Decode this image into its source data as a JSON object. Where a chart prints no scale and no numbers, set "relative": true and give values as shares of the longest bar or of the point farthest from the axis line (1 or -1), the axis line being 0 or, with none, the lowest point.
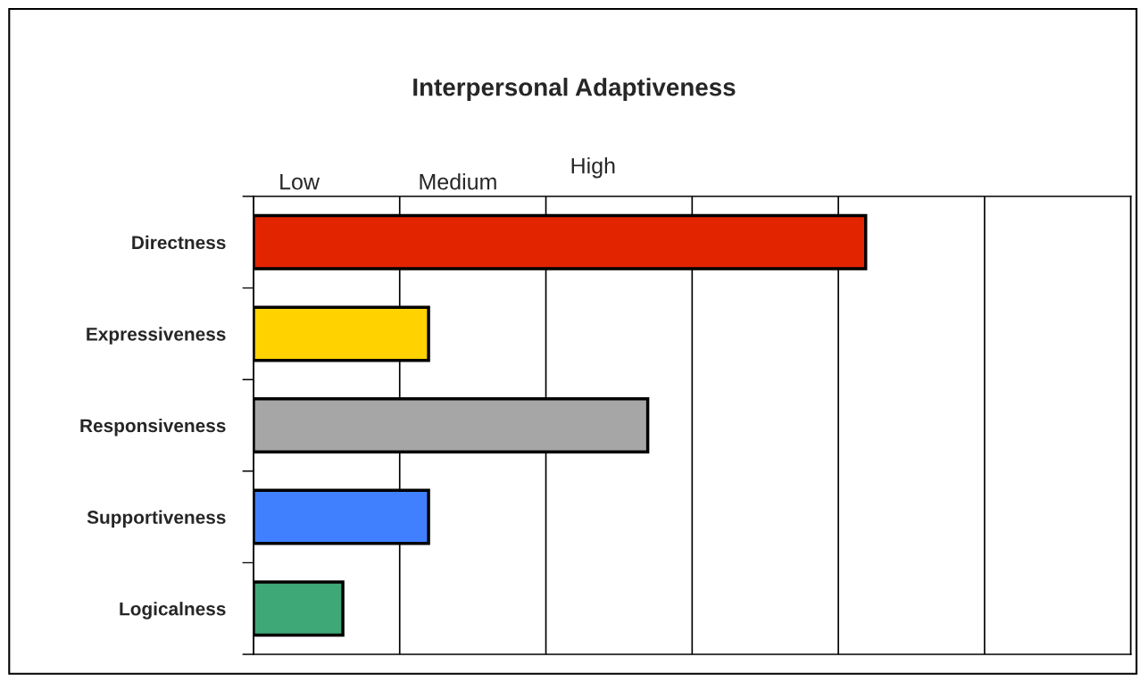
{
  "chart_data": {
    "type": "bar",
    "orientation": "horizontal",
    "relative": true,
    "title": "Interpersonal Adaptiveness",
    "categories": [
      "Directness",
      "Expressiveness",
      "Responsiveness",
      "Supportiveness",
      "Logicalness"
    ],
    "values": [
      1,
      0.286,
      0.644,
      0.286,
      0.146
    ],
    "colors": [
      "#e32400",
      "#ffd200",
      "#a6a6a6",
      "#4080ff",
      "#3fa877"
    ],
    "annotations": [
      "Low",
      "Medium",
      "High"
    ],
    "grid": "x",
    "legend": false
  }
}
